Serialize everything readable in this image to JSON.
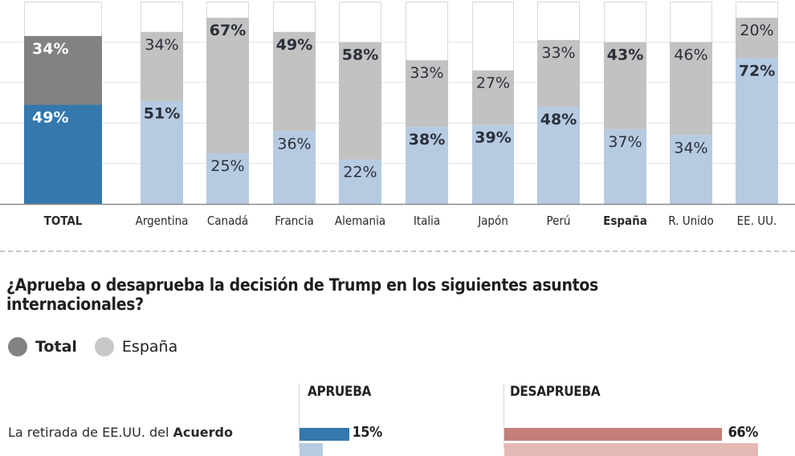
{
  "chart_data": [
    {
      "type": "bar",
      "stacked": true,
      "title": "",
      "xlabel": "",
      "ylabel": "",
      "ylim": [
        0,
        100
      ],
      "grid": true,
      "categories": [
        "TOTAL",
        "Argentina",
        "Canadá",
        "Francia",
        "Alemania",
        "Italia",
        "Japón",
        "Perú",
        "España",
        "R. Unido",
        "EE. UU."
      ],
      "bold_categories": [
        "TOTAL",
        "España"
      ],
      "series": [
        {
          "name": "Aprueba",
          "values": [
            49,
            51,
            25,
            36,
            22,
            38,
            39,
            48,
            37,
            34,
            72
          ],
          "labels": [
            "49%",
            "51%",
            "25%",
            "36%",
            "22%",
            "38%",
            "39%",
            "48%",
            "37%",
            "34%",
            "72%"
          ],
          "bold": [
            true,
            true,
            false,
            false,
            false,
            true,
            true,
            true,
            false,
            false,
            true
          ]
        },
        {
          "name": "Desaprueba",
          "values": [
            34,
            34,
            67,
            49,
            58,
            33,
            27,
            33,
            43,
            46,
            20
          ],
          "labels": [
            "34%",
            "34%",
            "67%",
            "49%",
            "58%",
            "33%",
            "27%",
            "33%",
            "43%",
            "46%",
            "20%"
          ],
          "bold": [
            true,
            false,
            true,
            true,
            true,
            false,
            false,
            false,
            true,
            false,
            false
          ]
        }
      ],
      "colors": {
        "total_approve": "#3478ad",
        "total_disapprove": "#828282",
        "approve": "#b6cbe2",
        "disapprove": "#c2c2c2",
        "remainder": "#ffffff",
        "remainder_border": "#d9d9d9",
        "grid": "#e3e3e3",
        "baseline": "#8a8a8a"
      }
    },
    {
      "type": "bar",
      "orientation": "horizontal",
      "title": "¿Aprueba o desaprueba la decisión de Trump en los siguientes asuntos internacionales?",
      "legend": [
        {
          "label": "Total",
          "color": "#828282",
          "bold": true
        },
        {
          "label": "España",
          "color": "#c8c8c8",
          "bold": false
        }
      ],
      "legend_position": "top-left",
      "columns": [
        "APRUEBA",
        "DESAPRUEBA"
      ],
      "rows": [
        {
          "label_parts": [
            {
              "text": "La retirada de EE.UU. del ",
              "bold": false
            },
            {
              "text": "Acuerdo",
              "bold": true
            }
          ],
          "aprueba": {
            "total": 15,
            "total_label": "15%",
            "espana": 7
          },
          "desaprueba": {
            "total": 66,
            "total_label": "66%",
            "espana": 77
          }
        }
      ],
      "colors": {
        "aprueba_total": "#3478ad",
        "aprueba_espana": "#b6cbe2",
        "desaprueba_total": "#c47f78",
        "desaprueba_espana": "#e4b9b4"
      }
    }
  ]
}
